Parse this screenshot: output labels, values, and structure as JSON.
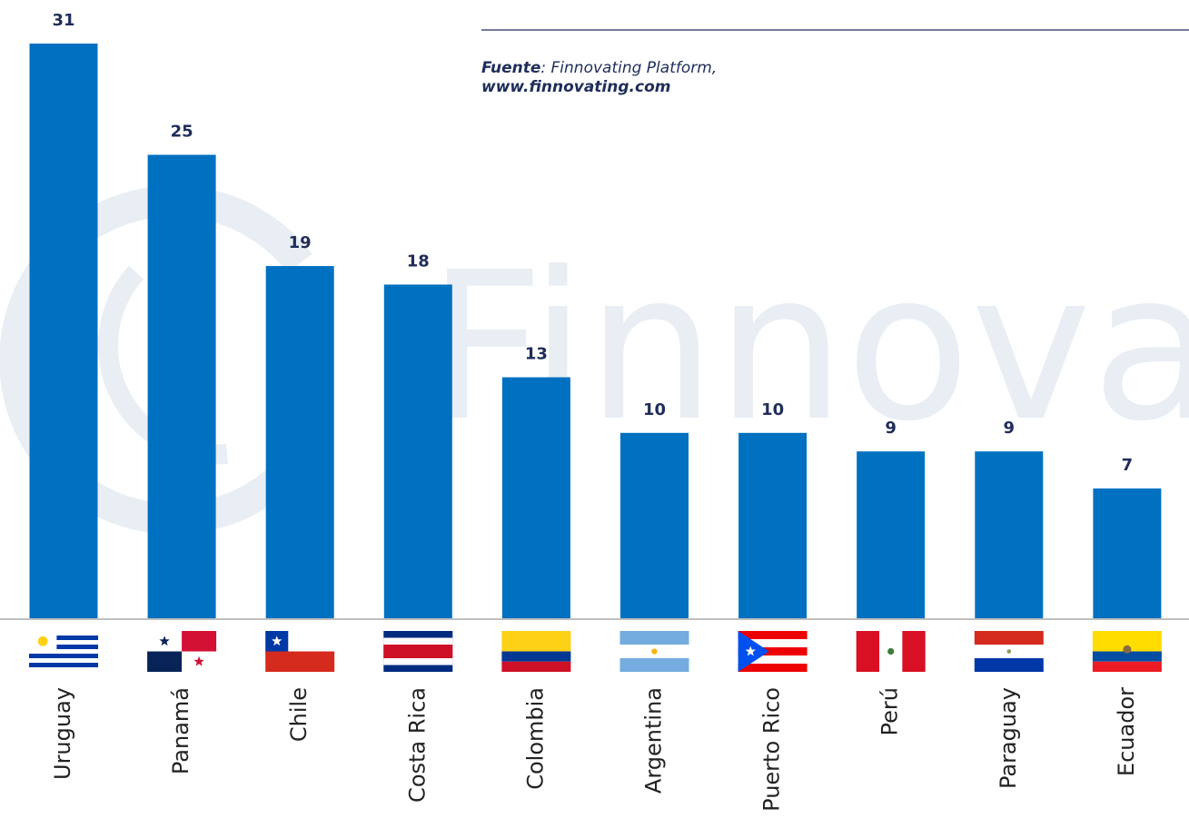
{
  "chart_data": {
    "type": "bar",
    "categories": [
      "Uruguay",
      "Panamá",
      "Chile",
      "Costa Rica",
      "Colombia",
      "Argentina",
      "Puerto Rico",
      "Perú",
      "Paraguay",
      "Ecuador"
    ],
    "values": [
      31,
      25,
      19,
      18,
      13,
      10,
      10,
      9,
      9,
      7
    ],
    "color": "#0070c0",
    "source": {
      "label": "Fuente",
      "text": ": Finnovating Platform,",
      "url": "www.finnovating.com"
    },
    "watermark": "Finnovating"
  }
}
